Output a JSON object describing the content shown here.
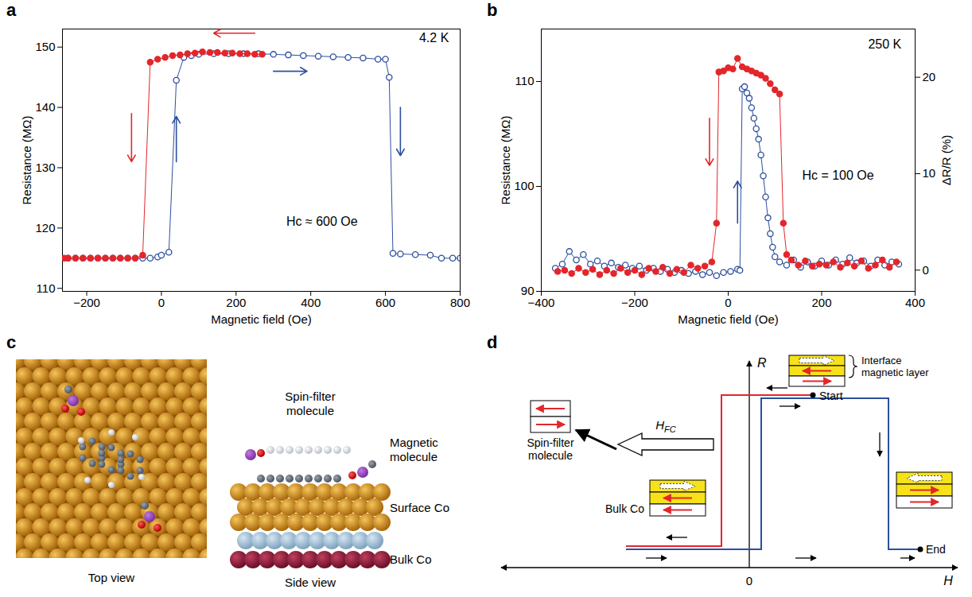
{
  "chart_data": [
    {
      "panel": "a",
      "type": "line",
      "x_label": "Magnetic field (Oe)",
      "y_label": "Resistance (MΩ)",
      "xlim": [
        -265,
        800
      ],
      "xticks": [
        -200,
        0,
        200,
        400,
        600,
        800
      ],
      "ylim": [
        109.5,
        153
      ],
      "yticks": [
        110,
        120,
        130,
        140,
        150
      ],
      "series": [
        {
          "color": "#2c4f9e",
          "marker": "open circle",
          "line_style": "solid",
          "x": [
            -250,
            -230,
            -210,
            -190,
            -170,
            -150,
            -130,
            -110,
            -90,
            -70,
            -50,
            -30,
            -10,
            0,
            20,
            40,
            60,
            80,
            100,
            140,
            180,
            220,
            260,
            300,
            340,
            380,
            420,
            460,
            500,
            540,
            580,
            600,
            610,
            620,
            640,
            680,
            720,
            750,
            780,
            800
          ],
          "values": [
            115,
            115,
            115,
            115,
            115,
            115,
            115,
            115,
            115,
            115,
            115,
            115,
            115.2,
            115.5,
            116,
            144.5,
            148.3,
            148.6,
            148.8,
            148.9,
            148.9,
            148.9,
            148.9,
            148.8,
            148.7,
            148.6,
            148.5,
            148.4,
            148.3,
            148.2,
            148,
            148,
            145,
            115.8,
            115.7,
            115.6,
            115.5,
            115,
            115,
            115
          ]
        },
        {
          "color": "#e3262b",
          "marker": "filled circle",
          "line_style": "solid",
          "x": [
            270,
            250,
            230,
            210,
            190,
            170,
            150,
            130,
            110,
            90,
            70,
            50,
            30,
            10,
            -10,
            -30,
            -50,
            -70,
            -90,
            -110,
            -130,
            -150,
            -170,
            -190,
            -210,
            -230,
            -250,
            -260
          ],
          "values": [
            148.8,
            148.8,
            148.9,
            148.9,
            149,
            149,
            149.1,
            149.1,
            149.2,
            149,
            148.9,
            148.7,
            148.6,
            148.3,
            148,
            147.5,
            115.5,
            115,
            115,
            115,
            115,
            115,
            115,
            115,
            115,
            115,
            115,
            115
          ]
        }
      ],
      "arrows": [
        {
          "x1": 250,
          "y1": 152.3,
          "x2": 140,
          "y2": 152.3,
          "color": "#e3262b"
        },
        {
          "x1": -80,
          "y1": 139,
          "x2": -80,
          "y2": 131,
          "color": "#e3262b"
        },
        {
          "x1": 40,
          "y1": 131,
          "x2": 40,
          "y2": 138.5,
          "color": "#2c4f9e"
        },
        {
          "x1": 300,
          "y1": 146,
          "x2": 390,
          "y2": 146,
          "color": "#2c4f9e"
        },
        {
          "x1": 640,
          "y1": 140,
          "x2": 640,
          "y2": 132,
          "color": "#2c4f9e"
        }
      ],
      "annotations": [
        {
          "text": "4.2 K",
          "x": 730,
          "y": 151.5
        },
        {
          "text": "Hc ≈ 600 Oe",
          "x": 430,
          "y": 121
        }
      ]
    },
    {
      "panel": "b",
      "type": "line",
      "x_label": "Magnetic field (Oe)",
      "y_label": "Resistance (MΩ)",
      "y2_label": "ΔR/R (%)",
      "xlim": [
        -400,
        400
      ],
      "xticks": [
        -400,
        -200,
        0,
        200,
        400
      ],
      "ylim": [
        90,
        115
      ],
      "yticks": [
        90,
        100,
        110
      ],
      "y2lim": [
        -2.2,
        25
      ],
      "y2ticks": [
        0,
        10,
        20
      ],
      "series": [
        {
          "color": "#2c4f9e",
          "marker": "open circle",
          "line_style": "solid",
          "x": [
            -370,
            -355,
            -340,
            -325,
            -310,
            -295,
            -280,
            -265,
            -250,
            -235,
            -220,
            -205,
            -190,
            -175,
            -160,
            -145,
            -130,
            -115,
            -100,
            -85,
            -70,
            -55,
            -40,
            -25,
            -10,
            5,
            20,
            25,
            30,
            35,
            40,
            45,
            50,
            55,
            60,
            65,
            70,
            75,
            80,
            85,
            90,
            95,
            100,
            110,
            125,
            140,
            155,
            170,
            185,
            200,
            215,
            230,
            245,
            260,
            275,
            290,
            305,
            320,
            335,
            350,
            365
          ],
          "values": [
            92.2,
            92.6,
            93.8,
            93,
            93.5,
            92.6,
            92.9,
            92.4,
            92.7,
            92.3,
            92.5,
            92.2,
            92.4,
            92,
            92.2,
            91.9,
            92.1,
            91.8,
            92,
            91.7,
            91.9,
            91.6,
            91.8,
            91.5,
            91.8,
            91.9,
            92.1,
            92,
            109.3,
            109.5,
            108.9,
            108.4,
            107.5,
            106.5,
            105.5,
            104.5,
            103,
            101,
            99,
            97,
            95.5,
            94.2,
            93.3,
            92.8,
            92.5,
            93,
            92.3,
            92.8,
            92.4,
            92.9,
            92.5,
            93,
            92.6,
            93.2,
            92.7,
            92.9,
            92.4,
            93,
            92.5,
            92.8,
            92.6
          ]
        },
        {
          "color": "#e3262b",
          "marker": "filled circle",
          "line_style": "solid",
          "x": [
            360,
            345,
            330,
            315,
            300,
            285,
            270,
            255,
            240,
            225,
            210,
            195,
            180,
            165,
            150,
            135,
            125,
            118,
            110,
            100,
            90,
            80,
            70,
            60,
            50,
            40,
            30,
            20,
            10,
            0,
            -10,
            -20,
            -25,
            -35,
            -50,
            -65,
            -80,
            -95,
            -110,
            -125,
            -140,
            -155,
            -170,
            -185,
            -200,
            -215,
            -230,
            -245,
            -260,
            -275,
            -290,
            -305,
            -320,
            -335,
            -350,
            -365
          ],
          "values": [
            92.8,
            92.3,
            93,
            92.5,
            92.2,
            92.9,
            92.4,
            92.7,
            92.3,
            92.8,
            92.5,
            92.6,
            92.4,
            92.9,
            92.5,
            93,
            93.5,
            96.5,
            108.8,
            109.2,
            109.8,
            110.3,
            110.6,
            110.8,
            111,
            111.2,
            111.4,
            112.2,
            111.2,
            111.3,
            111,
            110.9,
            96.5,
            92.8,
            92.4,
            92.2,
            92.5,
            91.8,
            92.1,
            91.7,
            92.3,
            91.9,
            92.2,
            91.6,
            92,
            91.8,
            92.2,
            91.7,
            92,
            91.6,
            92.1,
            91.8,
            92.2,
            91.7,
            92,
            91.9
          ]
        }
      ],
      "arrows": [
        {
          "x1": -40,
          "y1": 106.5,
          "x2": -40,
          "y2": 102,
          "color": "#e3262b"
        },
        {
          "x1": 20,
          "y1": 96.5,
          "x2": 20,
          "y2": 100.5,
          "color": "#2c4f9e"
        }
      ],
      "annotations": [
        {
          "text": "250 K",
          "x": 335,
          "y": 113.5
        },
        {
          "text": "Hc = 100 Oe",
          "x": 235,
          "y": 101
        }
      ]
    }
  ],
  "panels": {
    "c": {
      "panel": "c",
      "top_view": "Top view",
      "side_view": "Side view",
      "spin_filter": "Spin-filter molecule",
      "magnetic": "Magnetic molecule",
      "surface": "Surface Co",
      "bulk": "Bulk Co"
    },
    "d": {
      "panel": "d",
      "y_axis": "R",
      "x_axis": "H",
      "origin": "0",
      "start": "Start",
      "end": "End",
      "interface_layer": "Interface magnetic layer",
      "field": {
        "symbol": "H",
        "subscript": "FC"
      },
      "spin_filter": "Spin-filter molecule",
      "bulk": "Bulk Co"
    }
  }
}
